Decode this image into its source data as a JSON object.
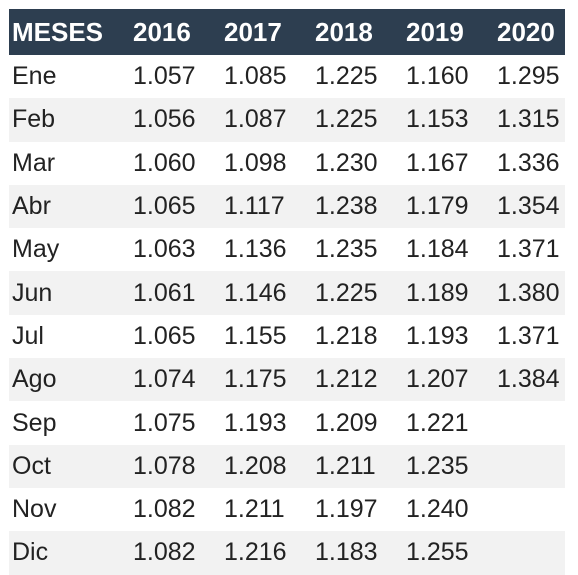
{
  "table": {
    "headers": [
      "MESES",
      "2016",
      "2017",
      "2018",
      "2019",
      "2020"
    ],
    "rows": [
      [
        "Ene",
        "1.057",
        "1.085",
        "1.225",
        "1.160",
        "1.295"
      ],
      [
        "Feb",
        "1.056",
        "1.087",
        "1.225",
        "1.153",
        "1.315"
      ],
      [
        "Mar",
        "1.060",
        "1.098",
        "1.230",
        "1.167",
        "1.336"
      ],
      [
        "Abr",
        "1.065",
        "1.117",
        "1.238",
        "1.179",
        "1.354"
      ],
      [
        "May",
        "1.063",
        "1.136",
        "1.235",
        "1.184",
        "1.371"
      ],
      [
        "Jun",
        "1.061",
        "1.146",
        "1.225",
        "1.189",
        "1.380"
      ],
      [
        "Jul",
        "1.065",
        "1.155",
        "1.218",
        "1.193",
        "1.371"
      ],
      [
        "Ago",
        "1.074",
        "1.175",
        "1.212",
        "1.207",
        "1.384"
      ],
      [
        "Sep",
        "1.075",
        "1.193",
        "1.209",
        "1.221",
        ""
      ],
      [
        "Oct",
        "1.078",
        "1.208",
        "1.211",
        "1.235",
        ""
      ],
      [
        "Nov",
        "1.082",
        "1.211",
        "1.197",
        "1.240",
        ""
      ],
      [
        "Dic",
        "1.082",
        "1.216",
        "1.183",
        "1.255",
        ""
      ]
    ]
  },
  "colors": {
    "header_bg": "#2d3e50",
    "header_text": "#ffffff",
    "stripe_bg": "#f2f2f2",
    "body_text": "#222222"
  }
}
